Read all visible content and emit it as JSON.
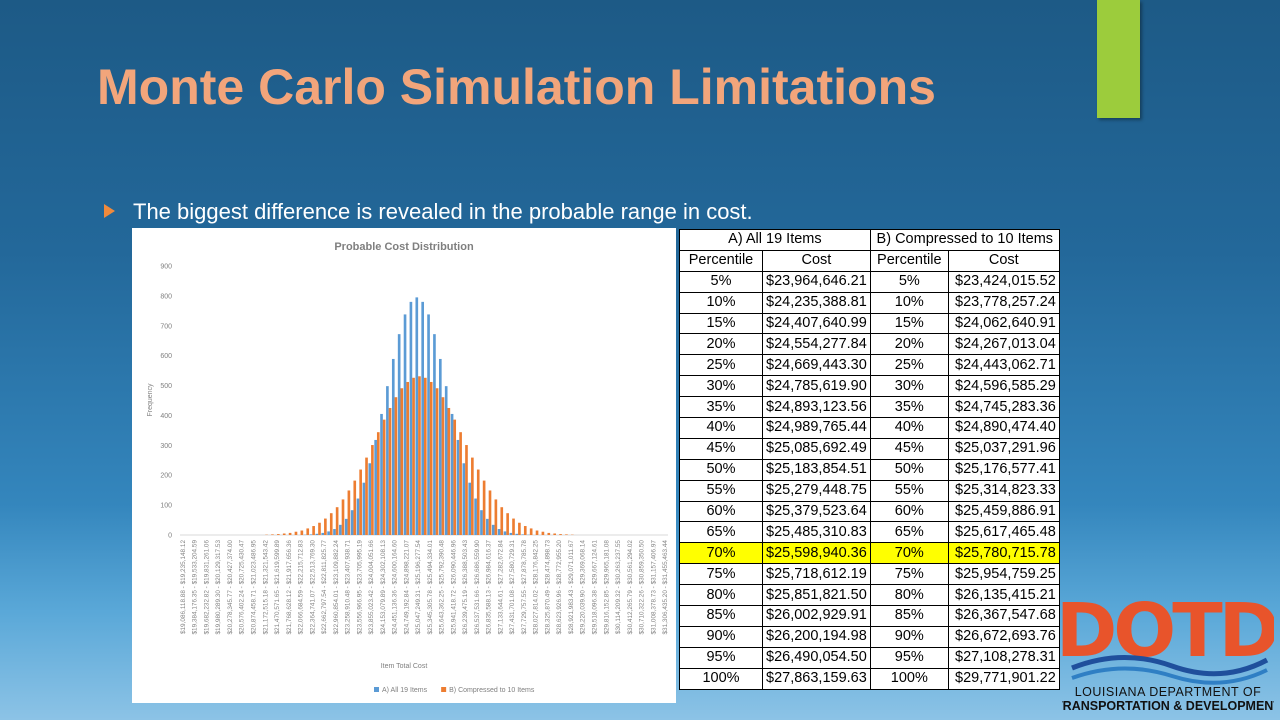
{
  "slide": {
    "title": "Monte Carlo Simulation Limitations",
    "bullet": "The biggest difference is revealed in the probable range in cost.",
    "logo": {
      "mark": "DOTD",
      "line1": "LOUISIANA DEPARTMENT OF",
      "line2": "TRANSPORTATION & DEVELOPMENT"
    }
  },
  "chart_data": {
    "type": "bar",
    "title": "Probable Cost Distribution",
    "x_label": "Item Total Cost",
    "y_label": "Frequency",
    "ylim": [
      0,
      900
    ],
    "yticks": [
      0,
      100,
      200,
      300,
      400,
      500,
      600,
      700,
      800,
      900
    ],
    "grid": false,
    "legend": "bottom",
    "categories": [
      "$19,086,118.88 - $19,235,148.12",
      null,
      "$19,384,176.35 - $19,533,204.59",
      null,
      "$19,682,232.82 - $19,831,261.06",
      null,
      "$19,980,289.30 - $20,129,317.53",
      null,
      "$20,278,345.77 - $20,427,374.00",
      null,
      "$20,576,402.24 - $20,725,430.47",
      null,
      "$20,874,458.71 - $21,023,486.95",
      null,
      "$21,172,515.18 - $21,321,543.42",
      null,
      "$21,470,571.65 - $21,619,599.89",
      null,
      "$21,768,628.12 - $21,917,656.36",
      null,
      "$22,066,684.59 - $22,215,712.83",
      null,
      "$22,364,741.07 - $22,513,769.30",
      null,
      "$22,662,797.54 - $22,811,825.77",
      null,
      "$22,960,854.01 - $23,109,882.24",
      null,
      "$23,258,910.48 - $23,407,938.71",
      null,
      "$23,556,966.95 - $23,705,995.19",
      null,
      "$23,855,023.42 - $24,004,051.66",
      null,
      "$24,153,079.89 - $24,302,108.13",
      null,
      "$24,451,136.36 - $24,600,164.60",
      null,
      "$24,749,192.84 - $24,898,221.07",
      null,
      "$25,047,249.31 - $25,196,277.54",
      null,
      "$25,345,305.78 - $25,494,334.01",
      null,
      "$25,643,362.25 - $25,792,390.48",
      null,
      "$25,941,418.72 - $26,090,446.96",
      null,
      "$26,239,475.19 - $26,388,503.43",
      null,
      "$26,537,531.66 - $26,686,559.90",
      null,
      "$26,835,588.13 - $26,984,616.37",
      null,
      "$27,133,644.61 - $27,282,672.84",
      null,
      "$27,431,701.08 - $27,580,729.31",
      null,
      "$27,729,757.55 - $27,878,785.78",
      null,
      "$28,027,814.02 - $28,176,842.25",
      null,
      "$28,325,870.49 - $28,474,898.73",
      null,
      "$28,623,926.96 - $28,772,955.20",
      null,
      "$28,921,983.43 - $29,071,011.67",
      null,
      "$29,220,039.90 - $29,369,068.14",
      null,
      "$29,518,096.38 - $29,667,124.61",
      null,
      "$29,816,152.85 - $29,965,181.08",
      null,
      "$30,114,209.32 - $30,263,237.55",
      null,
      "$30,412,265.79 - $30,561,294.02",
      null,
      "$30,710,322.26 - $30,859,350.50",
      null,
      "$31,008,378.73 - $31,157,406.97",
      null,
      "$31,306,435.20 - $31,455,463.44"
    ],
    "series": [
      {
        "name": "A) All 19 Items",
        "color": "#5b9bd5",
        "values": [
          0,
          0,
          0,
          0,
          0,
          0,
          0,
          0,
          0,
          0,
          0,
          0,
          0,
          0,
          0,
          0,
          0,
          0,
          0,
          0,
          0,
          1,
          2,
          4,
          7,
          12,
          20,
          34,
          54,
          83,
          122,
          175,
          240,
          318,
          405,
          498,
          589,
          672,
          738,
          780,
          795,
          780,
          738,
          672,
          589,
          498,
          405,
          318,
          240,
          175,
          122,
          83,
          54,
          34,
          20,
          12,
          7,
          4,
          2,
          1,
          0,
          0,
          0,
          0,
          0,
          0,
          0,
          0,
          0,
          0,
          0,
          0,
          0,
          0,
          0,
          0,
          0,
          0,
          0,
          0,
          0,
          0,
          0
        ]
      },
      {
        "name": "B) Compressed to 10 Items",
        "color": "#ed7d31",
        "values": [
          0,
          0,
          0,
          0,
          0,
          0,
          0,
          0,
          0,
          0,
          0,
          0,
          0,
          0,
          1,
          2,
          3,
          5,
          7,
          11,
          15,
          22,
          30,
          41,
          55,
          73,
          93,
          119,
          149,
          182,
          219,
          259,
          301,
          344,
          386,
          425,
          461,
          491,
          512,
          526,
          531,
          526,
          512,
          491,
          461,
          425,
          386,
          344,
          301,
          259,
          219,
          182,
          149,
          119,
          93,
          73,
          55,
          41,
          30,
          22,
          15,
          11,
          7,
          5,
          3,
          2,
          1,
          0,
          0,
          0,
          0,
          0,
          0,
          0,
          0,
          0,
          0,
          0,
          0,
          0,
          0,
          0,
          0
        ]
      }
    ]
  },
  "table": {
    "header": [
      "A) All 19 Items",
      "B) Compressed to 10 Items"
    ],
    "columns": [
      "Percentile",
      "Cost",
      "Percentile",
      "Cost"
    ],
    "rows": [
      [
        "5%",
        "$23,964,646.21",
        "5%",
        "$23,424,015.52"
      ],
      [
        "10%",
        "$24,235,388.81",
        "10%",
        "$23,778,257.24"
      ],
      [
        "15%",
        "$24,407,640.99",
        "15%",
        "$24,062,640.91"
      ],
      [
        "20%",
        "$24,554,277.84",
        "20%",
        "$24,267,013.04"
      ],
      [
        "25%",
        "$24,669,443.30",
        "25%",
        "$24,443,062.71"
      ],
      [
        "30%",
        "$24,785,619.90",
        "30%",
        "$24,596,585.29"
      ],
      [
        "35%",
        "$24,893,123.56",
        "35%",
        "$24,745,283.36"
      ],
      [
        "40%",
        "$24,989,765.44",
        "40%",
        "$24,890,474.40"
      ],
      [
        "45%",
        "$25,085,692.49",
        "45%",
        "$25,037,291.96"
      ],
      [
        "50%",
        "$25,183,854.51",
        "50%",
        "$25,176,577.41"
      ],
      [
        "55%",
        "$25,279,448.75",
        "55%",
        "$25,314,823.33"
      ],
      [
        "60%",
        "$25,379,523.64",
        "60%",
        "$25,459,886.91"
      ],
      [
        "65%",
        "$25,485,310.83",
        "65%",
        "$25,617,465.48"
      ],
      [
        "70%",
        "$25,598,940.36",
        "70%",
        "$25,780,715.78"
      ],
      [
        "75%",
        "$25,718,612.19",
        "75%",
        "$25,954,759.25"
      ],
      [
        "80%",
        "$25,851,821.50",
        "80%",
        "$26,135,415.21"
      ],
      [
        "85%",
        "$26,002,929.91",
        "85%",
        "$26,367,547.68"
      ],
      [
        "90%",
        "$26,200,194.98",
        "90%",
        "$26,672,693.76"
      ],
      [
        "95%",
        "$26,490,054.50",
        "95%",
        "$27,108,278.31"
      ],
      [
        "100%",
        "$27,863,159.63",
        "100%",
        "$29,771,901.22"
      ]
    ],
    "highlight": {
      "row": 13,
      "color": "#ffff00"
    }
  }
}
